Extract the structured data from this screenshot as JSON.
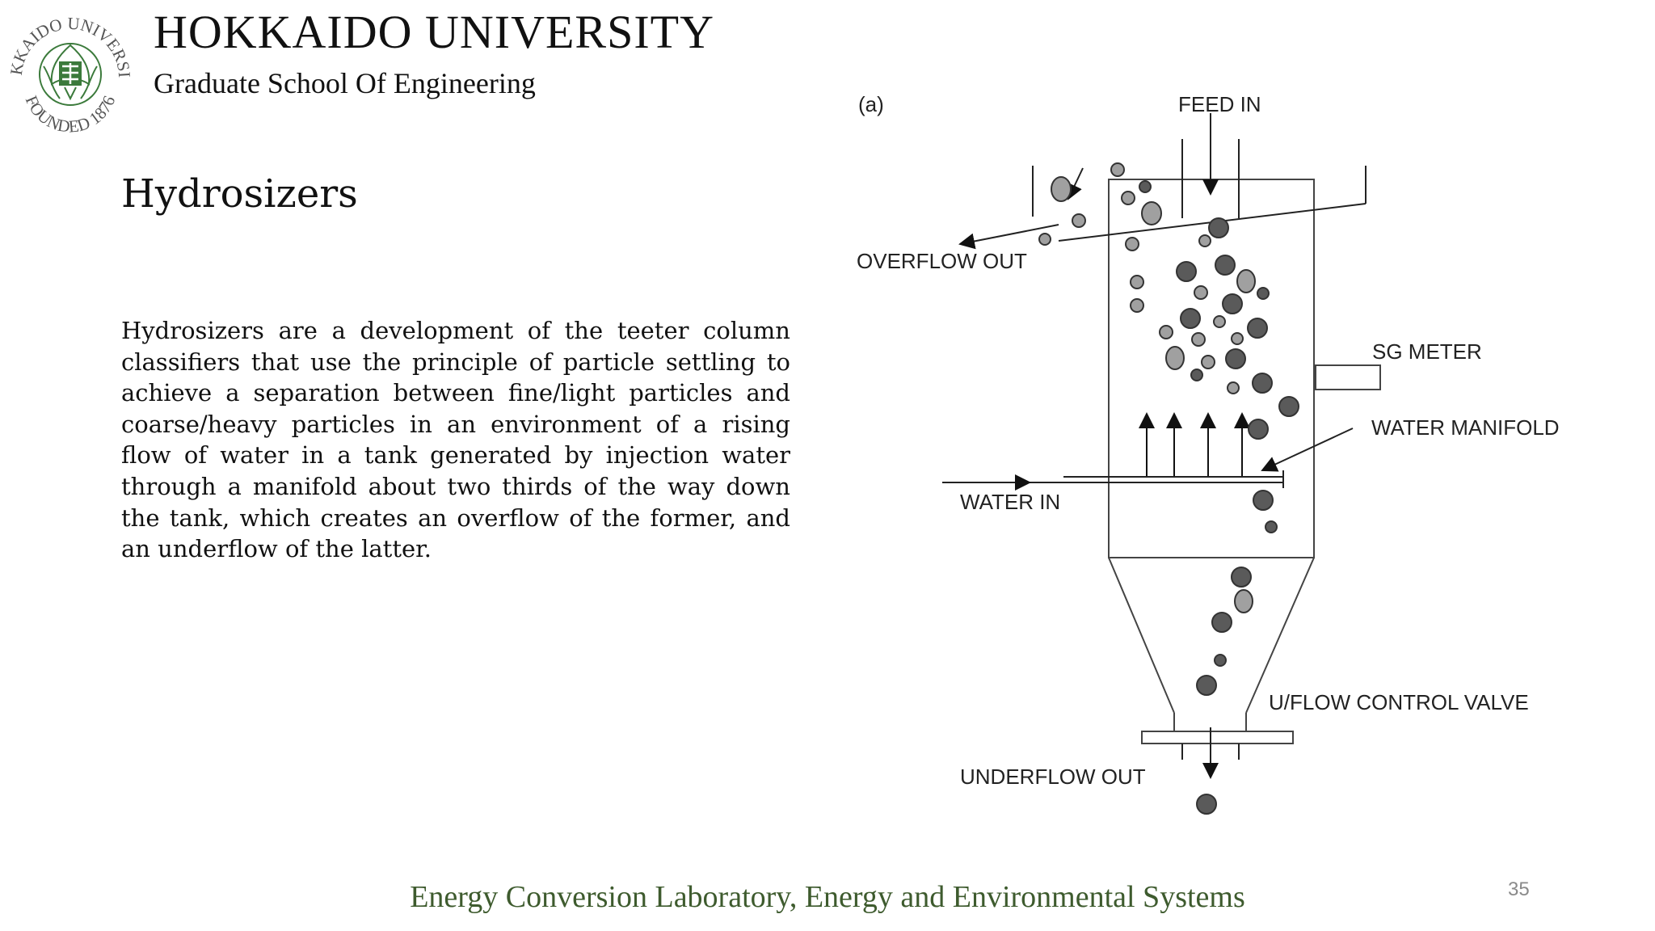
{
  "header": {
    "university": "HOKKAIDO UNIVERSITY",
    "school": "Graduate School Of Engineering",
    "logo_text_top": "HOKKAIDO UNIVERSITY",
    "logo_text_bottom": "FOUNDED 1876",
    "logo_icon": "university-seal-icon"
  },
  "slide": {
    "title": "Hydrosizers",
    "body": "Hydrosizers are a development of the teeter column classifiers that use the principle of particle settling to achieve a separation between fine/light particles and coarse/heavy particles in an environment of a rising flow of water in a tank generated by injection water through a manifold about two thirds of the way down the tank, which creates an overflow of the former, and an underflow of the latter."
  },
  "diagram": {
    "panel_label": "(a)",
    "labels": {
      "feed_in": "FEED IN",
      "overflow_out": "OVERFLOW OUT",
      "sg_meter": "SG METER",
      "water_manifold": "WATER MANIFOLD",
      "water_in": "WATER IN",
      "uflow_valve": "U/FLOW CONTROL VALVE",
      "underflow_out": "UNDERFLOW OUT"
    }
  },
  "footer": {
    "text": "Energy Conversion Laboratory, Energy and Environmental Systems",
    "page_number": "35"
  },
  "colors": {
    "footer_green": "#3e5b2e",
    "logo_green": "#3b7a3b",
    "particle_dark": "#5a5a5a",
    "particle_light": "#a0a0a0"
  }
}
